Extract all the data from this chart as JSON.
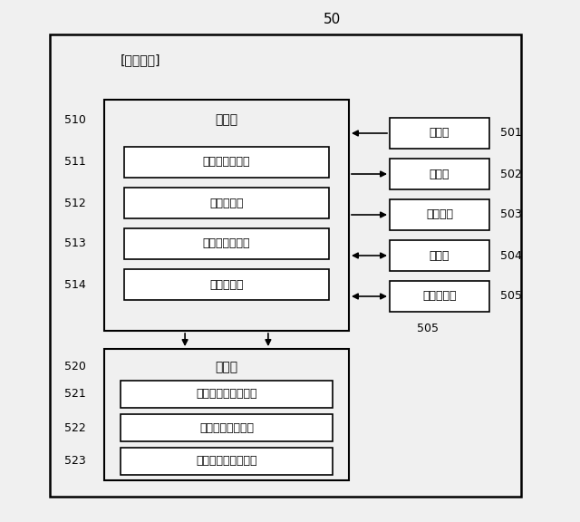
{
  "fig_bg": "#f0f0f0",
  "inner_bg": "#ffffff",
  "title_num": "50",
  "outer_label": "[車上装置]",
  "proc_label": "処理部",
  "proc_num": "510",
  "mem_label": "記憶部",
  "mem_num": "520",
  "proc_inner": [
    {
      "label": "位置速度算出部",
      "num": "511"
    },
    {
      "label": "位置通知部",
      "num": "512"
    },
    {
      "label": "踏切通過検知部",
      "num": "513"
    },
    {
      "label": "走行制御部",
      "num": "514"
    }
  ],
  "mem_inner": [
    {
      "label": "車上制御プログラム",
      "num": "521"
    },
    {
      "label": "踏切通過位置情報",
      "num": "522"
    },
    {
      "label": "自列車位置速度情報",
      "num": "523"
    }
  ],
  "right_boxes": [
    {
      "label": "操作部",
      "num": "501",
      "arrow": "left"
    },
    {
      "label": "表示部",
      "num": "502",
      "arrow": "right"
    },
    {
      "label": "音出力部",
      "num": "503",
      "arrow": "right"
    },
    {
      "label": "時計部",
      "num": "504",
      "arrow": "both"
    },
    {
      "label": "無線通信部",
      "num": "505",
      "arrow": "both"
    }
  ]
}
